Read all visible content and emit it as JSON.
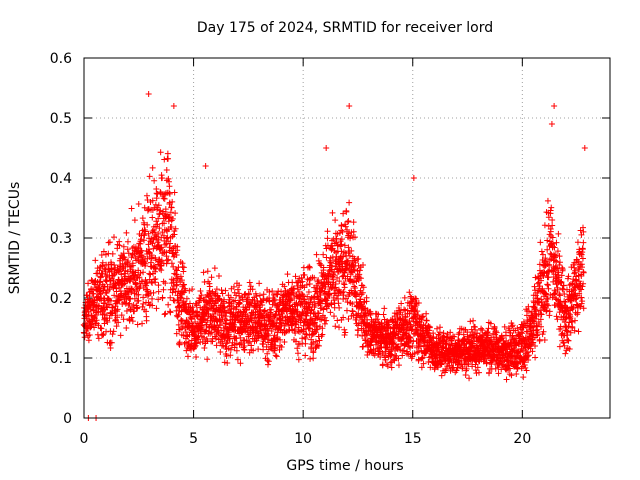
{
  "chart_data": {
    "type": "scatter",
    "title": "Day 175 of 2024, SRMTID for receiver lord",
    "xlabel": "GPS time / hours",
    "ylabel": "SRMTID / TECUs",
    "xlim": [
      0,
      24
    ],
    "ylim": [
      0,
      0.6
    ],
    "x_ticks": [
      0,
      5,
      10,
      15,
      20
    ],
    "x_tick_labels": [
      "0",
      "5",
      "10",
      "15",
      "20"
    ],
    "y_ticks": [
      0,
      0.1,
      0.2,
      0.3,
      0.4,
      0.5,
      0.6
    ],
    "y_tick_labels": [
      "0",
      "0.1",
      "0.2",
      "0.3",
      "0.4",
      "0.5",
      "0.6"
    ],
    "grid": true,
    "marker": "+",
    "series": [
      {
        "name": "SRMTID",
        "color": "#ff0000",
        "sampling_interval_hours": 0.0167,
        "envelope": [
          {
            "x": 0.0,
            "center": 0.16,
            "spread": 0.05
          },
          {
            "x": 0.6,
            "center": 0.2,
            "spread": 0.1
          },
          {
            "x": 1.5,
            "center": 0.22,
            "spread": 0.12
          },
          {
            "x": 2.5,
            "center": 0.24,
            "spread": 0.12
          },
          {
            "x": 3.2,
            "center": 0.3,
            "spread": 0.18
          },
          {
            "x": 3.9,
            "center": 0.33,
            "spread": 0.2
          },
          {
            "x": 4.3,
            "center": 0.2,
            "spread": 0.12
          },
          {
            "x": 5.0,
            "center": 0.15,
            "spread": 0.06
          },
          {
            "x": 5.6,
            "center": 0.18,
            "spread": 0.1
          },
          {
            "x": 6.5,
            "center": 0.15,
            "spread": 0.08
          },
          {
            "x": 7.5,
            "center": 0.17,
            "spread": 0.08
          },
          {
            "x": 8.5,
            "center": 0.15,
            "spread": 0.08
          },
          {
            "x": 9.5,
            "center": 0.19,
            "spread": 0.09
          },
          {
            "x": 10.5,
            "center": 0.17,
            "spread": 0.1
          },
          {
            "x": 11.2,
            "center": 0.24,
            "spread": 0.13
          },
          {
            "x": 12.1,
            "center": 0.26,
            "spread": 0.15
          },
          {
            "x": 13.0,
            "center": 0.14,
            "spread": 0.06
          },
          {
            "x": 14.0,
            "center": 0.13,
            "spread": 0.06
          },
          {
            "x": 15.0,
            "center": 0.16,
            "spread": 0.08
          },
          {
            "x": 16.0,
            "center": 0.11,
            "spread": 0.05
          },
          {
            "x": 17.0,
            "center": 0.11,
            "spread": 0.05
          },
          {
            "x": 18.0,
            "center": 0.12,
            "spread": 0.06
          },
          {
            "x": 19.0,
            "center": 0.11,
            "spread": 0.05
          },
          {
            "x": 20.0,
            "center": 0.12,
            "spread": 0.07
          },
          {
            "x": 20.5,
            "center": 0.15,
            "spread": 0.08
          },
          {
            "x": 21.3,
            "center": 0.27,
            "spread": 0.15
          },
          {
            "x": 22.0,
            "center": 0.16,
            "spread": 0.08
          },
          {
            "x": 22.8,
            "center": 0.26,
            "spread": 0.14
          }
        ],
        "peaks": [
          {
            "x": 2.95,
            "y": 0.54
          },
          {
            "x": 4.1,
            "y": 0.52
          },
          {
            "x": 5.55,
            "y": 0.42
          },
          {
            "x": 11.05,
            "y": 0.45
          },
          {
            "x": 12.1,
            "y": 0.52
          },
          {
            "x": 15.05,
            "y": 0.4
          },
          {
            "x": 21.45,
            "y": 0.52
          },
          {
            "x": 21.35,
            "y": 0.49
          },
          {
            "x": 22.85,
            "y": 0.45
          }
        ],
        "zero_points": [
          {
            "x": 0.2,
            "y": 0.0
          },
          {
            "x": 0.55,
            "y": 0.0
          }
        ]
      }
    ]
  }
}
